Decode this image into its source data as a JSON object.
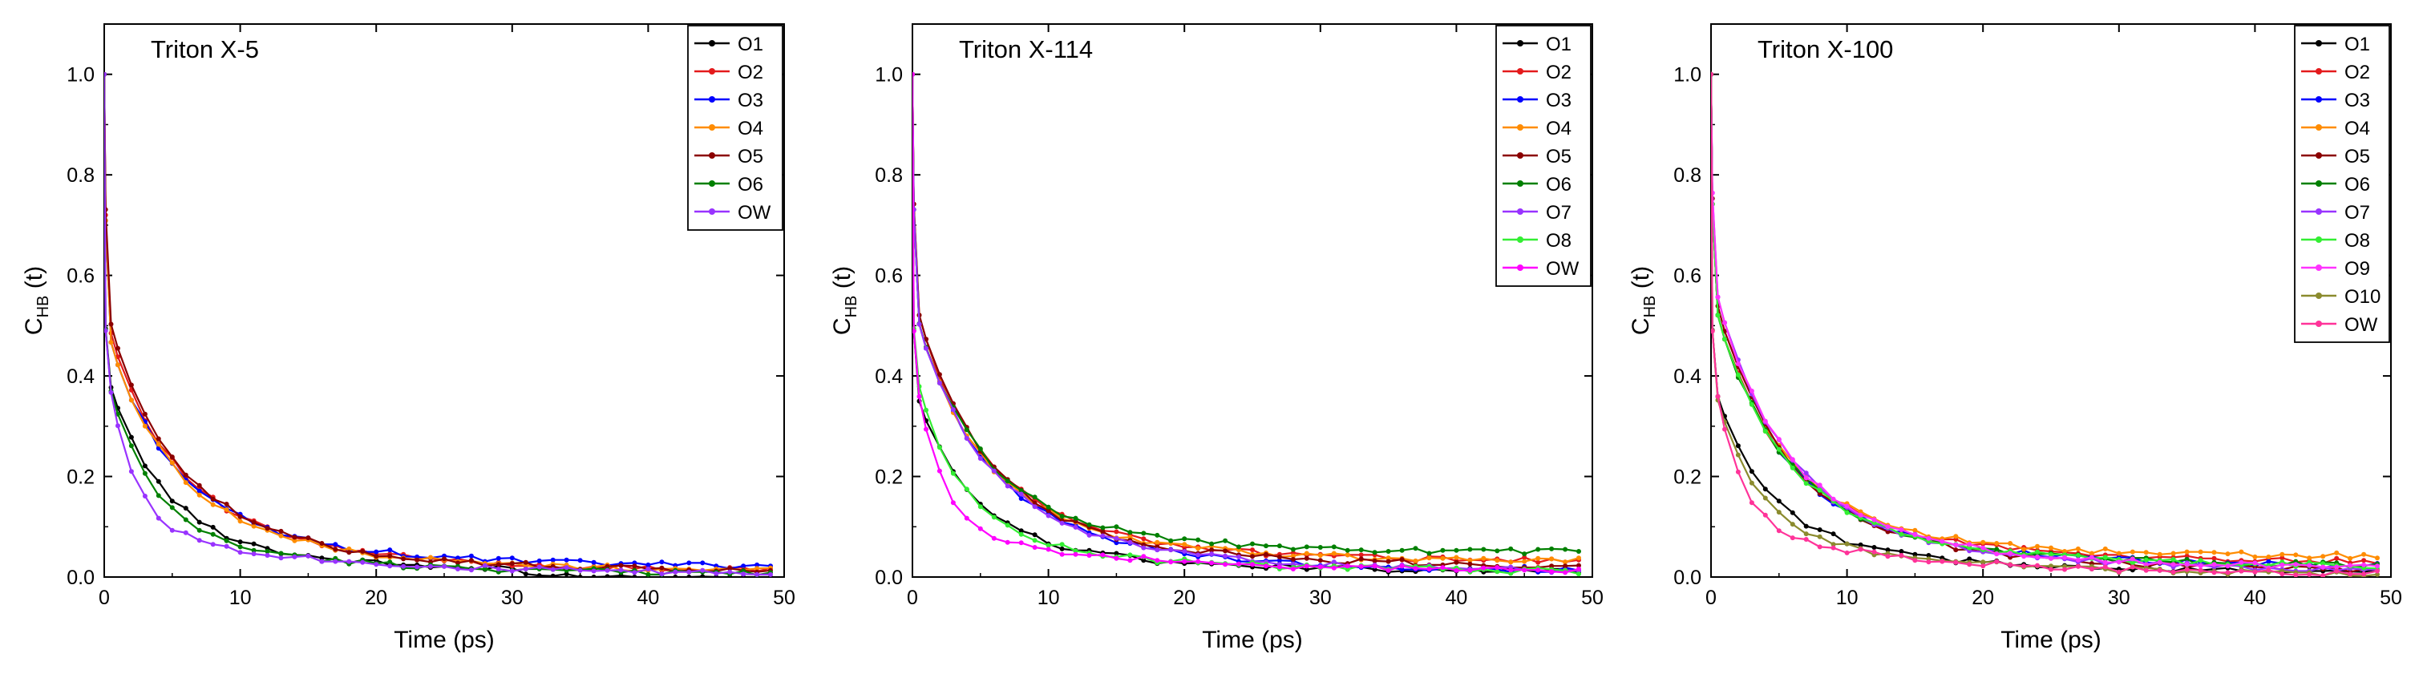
{
  "chart_data": [
    {
      "type": "line",
      "title": "Triton X-5",
      "xlabel": "Time (ps)",
      "ylabel": {
        "main": "C",
        "sub": "HB",
        "rest": " (t)"
      },
      "xlim": [
        0,
        50
      ],
      "ylim": [
        0,
        1.1
      ],
      "xticks": [
        0,
        10,
        20,
        30,
        40,
        50
      ],
      "yticks": [
        0.0,
        0.2,
        0.4,
        0.6,
        0.8,
        1.0
      ],
      "grid": false,
      "legend": "top-right",
      "series": [
        {
          "name": "O1",
          "color": "#000000",
          "tau": 1.2,
          "ratio": 0.8,
          "tail": 0.005,
          "cutoff": 30
        },
        {
          "name": "O2",
          "color": "#e41a1c",
          "tau": 1.0,
          "ratio": 0.52,
          "tail": 0.01
        },
        {
          "name": "O3",
          "color": "#0000ff",
          "tau": 1.0,
          "ratio": 0.5,
          "tail": 0.02
        },
        {
          "name": "O4",
          "color": "#ff8c00",
          "tau": 1.0,
          "ratio": 0.5,
          "tail": 0.01
        },
        {
          "name": "O5",
          "color": "#8b0000",
          "tau": 1.0,
          "ratio": 0.54,
          "tail": 0.008
        },
        {
          "name": "O6",
          "color": "#008000",
          "tau": 1.0,
          "ratio": 0.8,
          "tail": 0.005
        },
        {
          "name": "OW",
          "color": "#9933ff",
          "tau": 0.6,
          "ratio": 0.86,
          "tail": 0.005
        }
      ]
    },
    {
      "type": "line",
      "title": "Triton X-114",
      "xlabel": "Time (ps)",
      "ylabel": {
        "main": "C",
        "sub": "HB",
        "rest": " (t)"
      },
      "xlim": [
        0,
        50
      ],
      "ylim": [
        0,
        1.1
      ],
      "xticks": [
        0,
        10,
        20,
        30,
        40,
        50
      ],
      "yticks": [
        0.0,
        0.2,
        0.4,
        0.6,
        0.8,
        1.0
      ],
      "grid": false,
      "legend": "top-right",
      "series": [
        {
          "name": "O1",
          "color": "#000000",
          "tau": 1.2,
          "ratio": 0.74,
          "tail": 0.01
        },
        {
          "name": "O2",
          "color": "#e41a1c",
          "tau": 1.0,
          "ratio": 0.56,
          "tail": 0.03
        },
        {
          "name": "O3",
          "color": "#0000ff",
          "tau": 1.0,
          "ratio": 0.54,
          "tail": 0.01
        },
        {
          "name": "O4",
          "color": "#ff8c00",
          "tau": 1.0,
          "ratio": 0.54,
          "tail": 0.03
        },
        {
          "name": "O5",
          "color": "#8b0000",
          "tau": 1.0,
          "ratio": 0.56,
          "tail": 0.02
        },
        {
          "name": "O6",
          "color": "#008000",
          "tau": 1.0,
          "ratio": 0.54,
          "tail": 0.05
        },
        {
          "name": "O7",
          "color": "#9933ff",
          "tau": 1.0,
          "ratio": 0.54,
          "tail": 0.01
        },
        {
          "name": "O8",
          "color": "#33ee33",
          "tau": 1.0,
          "ratio": 0.82,
          "tail": 0.01
        },
        {
          "name": "OW",
          "color": "#ff00ff",
          "tau": 0.6,
          "ratio": 0.84,
          "tail": 0.01
        }
      ]
    },
    {
      "type": "line",
      "title": "Triton X-100",
      "xlabel": "Time (ps)",
      "ylabel": {
        "main": "C",
        "sub": "HB",
        "rest": " (t)"
      },
      "xlim": [
        0,
        50
      ],
      "ylim": [
        0,
        1.1
      ],
      "xticks": [
        0,
        10,
        20,
        30,
        40,
        50
      ],
      "yticks": [
        0.0,
        0.2,
        0.4,
        0.6,
        0.8,
        1.0
      ],
      "grid": false,
      "legend": "top-right",
      "series": [
        {
          "name": "O1",
          "color": "#000000",
          "tau": 1.2,
          "ratio": 0.76,
          "tail": 0.008
        },
        {
          "name": "O2",
          "color": "#e41a1c",
          "tau": 1.0,
          "ratio": 0.56,
          "tail": 0.03
        },
        {
          "name": "O3",
          "color": "#0000ff",
          "tau": 1.0,
          "ratio": 0.56,
          "tail": 0.02
        },
        {
          "name": "O4",
          "color": "#ff8c00",
          "tau": 1.0,
          "ratio": 0.56,
          "tail": 0.04
        },
        {
          "name": "O5",
          "color": "#8b0000",
          "tau": 1.0,
          "ratio": 0.58,
          "tail": 0.01
        },
        {
          "name": "O6",
          "color": "#008000",
          "tau": 1.0,
          "ratio": 0.56,
          "tail": 0.02
        },
        {
          "name": "O7",
          "color": "#9933ff",
          "tau": 1.0,
          "ratio": 0.6,
          "tail": 0.01
        },
        {
          "name": "O8",
          "color": "#33ee33",
          "tau": 1.0,
          "ratio": 0.56,
          "tail": 0.02
        },
        {
          "name": "O9",
          "color": "#ff33ff",
          "tau": 1.0,
          "ratio": 0.6,
          "tail": 0.015
        },
        {
          "name": "O10",
          "color": "#8b8b2e",
          "tau": 1.0,
          "ratio": 0.76,
          "tail": 0.005
        },
        {
          "name": "OW",
          "color": "#ff3399",
          "tau": 0.6,
          "ratio": 0.84,
          "tail": 0.005
        }
      ]
    }
  ]
}
